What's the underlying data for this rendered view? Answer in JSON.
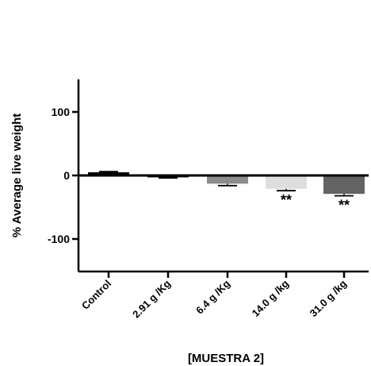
{
  "chart_data": {
    "type": "bar",
    "title": "",
    "xlabel": "[MUESTRA 2]",
    "ylabel": "% Average live weight",
    "ylim": [
      -150,
      150
    ],
    "yticks": [
      100,
      0,
      -100
    ],
    "ytick_labels": [
      "100",
      "0",
      "-100"
    ],
    "categories": [
      "Control",
      "2.91 g /Kg",
      "6.4 g /Kg",
      "14.0 g /kg",
      "31.0 g /kg"
    ],
    "values": [
      5,
      -3,
      -13,
      -21,
      -29
    ],
    "errors": [
      1,
      1,
      3,
      3,
      3
    ],
    "annotations": [
      "",
      "",
      "",
      "**",
      "**"
    ],
    "bar_colors": [
      "#000000",
      "#000000",
      "#8c8c8c",
      "#dedede",
      "#636363"
    ],
    "grid": false,
    "legend": "none"
  }
}
